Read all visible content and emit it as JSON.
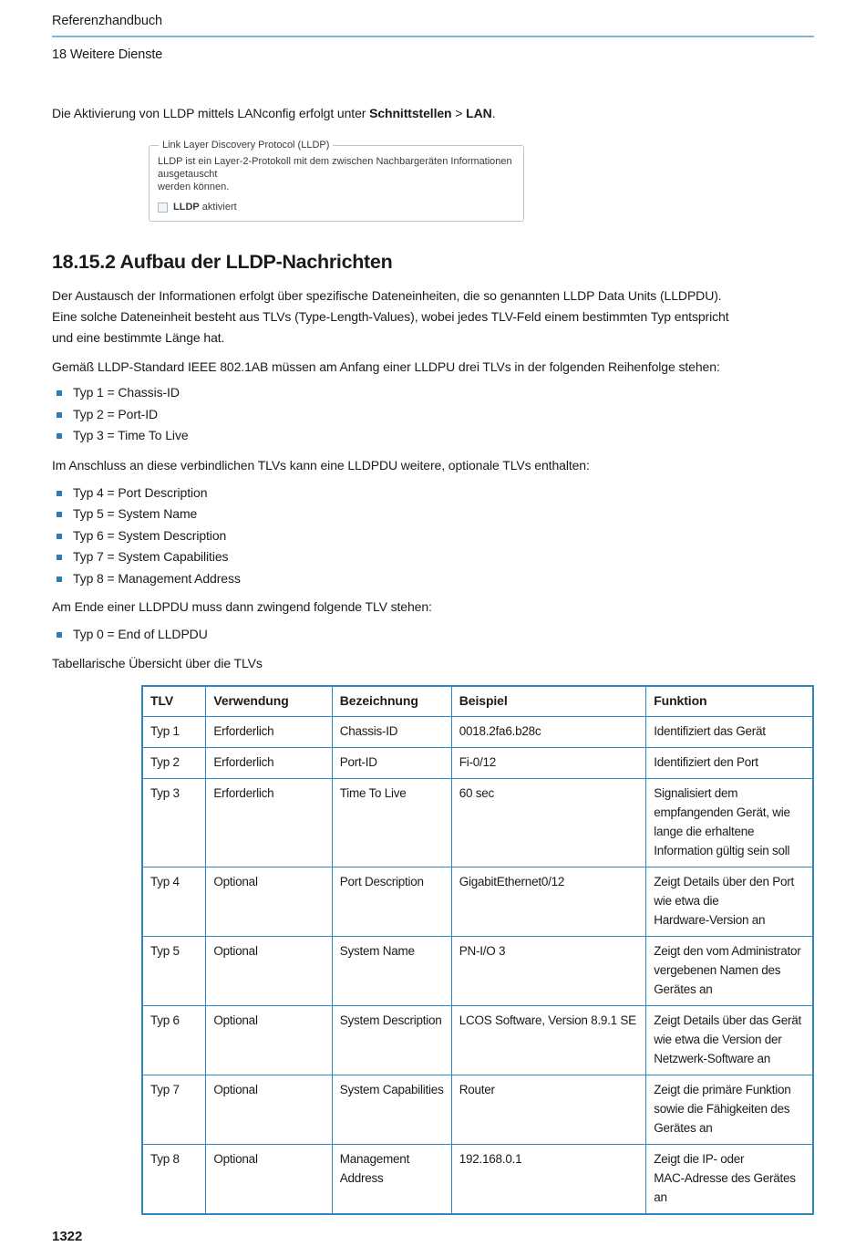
{
  "colors": {
    "accent_table_border": "#2e86c1",
    "header_rule": "#7db5d8",
    "bullet": "#2e7cb4",
    "text": "#1b1b1b"
  },
  "header": {
    "doc_title": "Referenzhandbuch",
    "chapter": "18 Weitere Dienste"
  },
  "footer": {
    "page_number": "1322"
  },
  "intro": {
    "text": "Die Aktivierung von LLDP mittels LANconfig erfolgt unter ",
    "bold1": "Schnittstellen",
    "sep": " > ",
    "bold2": "LAN",
    "period": "."
  },
  "dialog": {
    "legend": "Link Layer Discovery Protocol (LLDP)",
    "description": "LLDP ist ein Layer-2-Protokoll mit dem zwischen Nachbargeräten Informationen ausgetauscht\nwerden können.",
    "checkbox_bold": "LLDP",
    "checkbox_rest": " aktiviert"
  },
  "section": {
    "heading": "18.15.2 Aufbau der LLDP-Nachrichten",
    "para1": "Der Austausch der Informationen erfolgt über spezifische Dateneinheiten, die so genannten LLDP Data Units (LLDPDU).\nEine solche Dateneinheit besteht aus TLVs (Type-Length-Values), wobei jedes TLV-Feld einem bestimmten Typ entspricht\nund eine bestimmte Länge hat.",
    "para2": "Gemäß LLDP-Standard IEEE 802.1AB müssen am Anfang einer LLDPU drei TLVs in der folgenden Reihenfolge stehen:",
    "list1": [
      "Typ 1 = Chassis-ID",
      "Typ 2 = Port-ID",
      "Typ 3 = Time To Live"
    ],
    "para3": "Im Anschluss an diese verbindlichen TLVs kann eine LLDPDU weitere, optionale TLVs enthalten:",
    "list2": [
      "Typ 4 = Port Description",
      "Typ 5 = System Name",
      "Typ 6 = System Description",
      "Typ 7 = System Capabilities",
      "Typ 8 = Management Address"
    ],
    "para4": "Am Ende einer LLDPDU muss dann zwingend folgende TLV stehen:",
    "list3": [
      "Typ 0 = End of LLDPDU"
    ],
    "para5": "Tabellarische Übersicht über die TLVs"
  },
  "table": {
    "headers": [
      "TLV",
      "Verwendung",
      "Bezeichnung",
      "Beispiel",
      "Funktion"
    ],
    "col_widths_pct": [
      9.5,
      18.8,
      17.8,
      29.0,
      24.9
    ],
    "rows": [
      [
        "Typ 1",
        "Erforderlich",
        "Chassis-ID",
        "0018.2fa6.b28c",
        "Identifiziert das Gerät"
      ],
      [
        "Typ 2",
        "Erforderlich",
        "Port-ID",
        "Fi-0/12",
        "Identifiziert den Port"
      ],
      [
        "Typ 3",
        "Erforderlich",
        "Time To Live",
        "60 sec",
        "Signalisiert dem\nempfangenden Gerät, wie\nlange die erhaltene\nInformation gültig sein soll"
      ],
      [
        "Typ 4",
        "Optional",
        "Port Description",
        "GigabitEthernet0/12",
        "Zeigt Details über den Port\nwie etwa die\nHardware-Version an"
      ],
      [
        "Typ 5",
        "Optional",
        "System Name",
        "PN-I/O 3",
        "Zeigt den vom Administrator\nvergebenen Namen des\nGerätes an"
      ],
      [
        "Typ 6",
        "Optional",
        "System Description",
        "LCOS Software, Version 8.9.1 SE",
        "Zeigt Details über das Gerät\nwie etwa die Version der\nNetzwerk-Software an"
      ],
      [
        "Typ 7",
        "Optional",
        "System Capabilities",
        "Router",
        "Zeigt die primäre Funktion\nsowie die Fähigkeiten des\nGerätes an"
      ],
      [
        "Typ 8",
        "Optional",
        "Management\nAddress",
        "192.168.0.1",
        "Zeigt die IP- oder\nMAC-Adresse des Gerätes an"
      ]
    ]
  }
}
